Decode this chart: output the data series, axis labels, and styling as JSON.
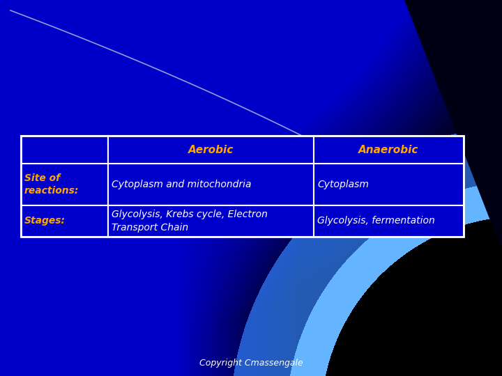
{
  "bg_blue": "#0000CC",
  "bg_dark": "#000010",
  "arc_thin_color": "#8899CC",
  "swoosh1_color": "#2255BB",
  "swoosh2_color": "#4477DD",
  "swoosh3_color": "#3399FF",
  "table_border_color": "#FFFFFF",
  "header_text_color": "#FFA500",
  "label_text_color": "#FFA500",
  "cell_text_color": "#FFFFFF",
  "header_row": [
    "",
    "Aerobic",
    "Anaerobic"
  ],
  "row1_label": "Site of\nreactions:",
  "row1_aerobic": "Cytoplasm and mitochondria",
  "row1_anaerobic": "Cytoplasm",
  "row2_label": "Stages:",
  "row2_aerobic": "Glycolysis, Krebs cycle, Electron\nTransport Chain",
  "row2_anaerobic": "Glycolysis, fermentation",
  "copyright_text": "Copyright Cmassengale",
  "copyright_color": "#FFFFFF",
  "fig_width": 7.2,
  "fig_height": 5.4,
  "dpi": 100
}
